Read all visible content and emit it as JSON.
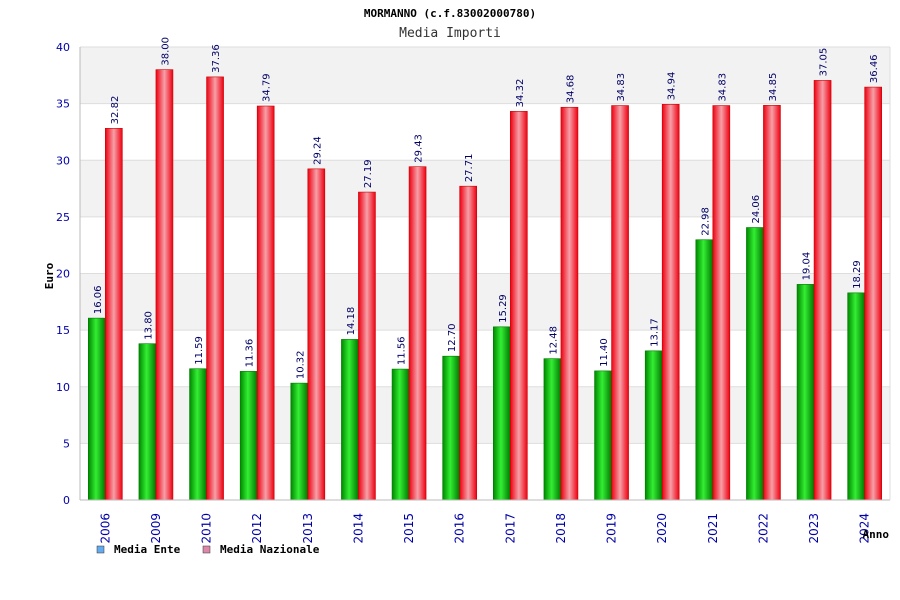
{
  "chart_data": {
    "type": "bar",
    "title": "MORMANNO (c.f.83002000780)",
    "subtitle": "Media Importi",
    "xlabel": "Anno",
    "ylabel": "Euro",
    "ylim": [
      0,
      40
    ],
    "yticks": [
      "0",
      "5",
      "10",
      "15",
      "20",
      "25",
      "30",
      "35",
      "40"
    ],
    "grid": true,
    "legend_position": "bottom-left",
    "categories": [
      "2006",
      "2009",
      "2010",
      "2012",
      "2013",
      "2014",
      "2015",
      "2016",
      "2017",
      "2018",
      "2019",
      "2020",
      "2021",
      "2022",
      "2023",
      "2024"
    ],
    "series": [
      {
        "name": "Media Ente",
        "color": "#00cc00",
        "legend_color": "#66aaee",
        "values": [
          16.06,
          13.8,
          11.59,
          11.36,
          10.32,
          14.18,
          11.56,
          12.7,
          15.29,
          12.48,
          11.4,
          13.17,
          22.98,
          24.06,
          19.04,
          18.29
        ],
        "labels": [
          "16.06",
          "13.80",
          "11.59",
          "11.36",
          "10.32",
          "14.18",
          "11.56",
          "12.70",
          "15.29",
          "12.48",
          "11.40",
          "13.17",
          "22.98",
          "24.06",
          "19.04",
          "18.29"
        ]
      },
      {
        "name": "Media Nazionale",
        "color": "#ee1122",
        "legend_color": "#dd88aa",
        "values": [
          32.82,
          38.0,
          37.36,
          34.79,
          29.24,
          27.19,
          29.43,
          27.71,
          34.32,
          34.68,
          34.83,
          34.94,
          34.83,
          34.85,
          37.05,
          36.46
        ],
        "labels": [
          "32.82",
          "38.00",
          "37.36",
          "34.79",
          "29.24",
          "27.19",
          "29.43",
          "27.71",
          "34.32",
          "34.68",
          "34.83",
          "34.94",
          "34.83",
          "34.85",
          "37.05",
          "36.46"
        ]
      }
    ]
  }
}
